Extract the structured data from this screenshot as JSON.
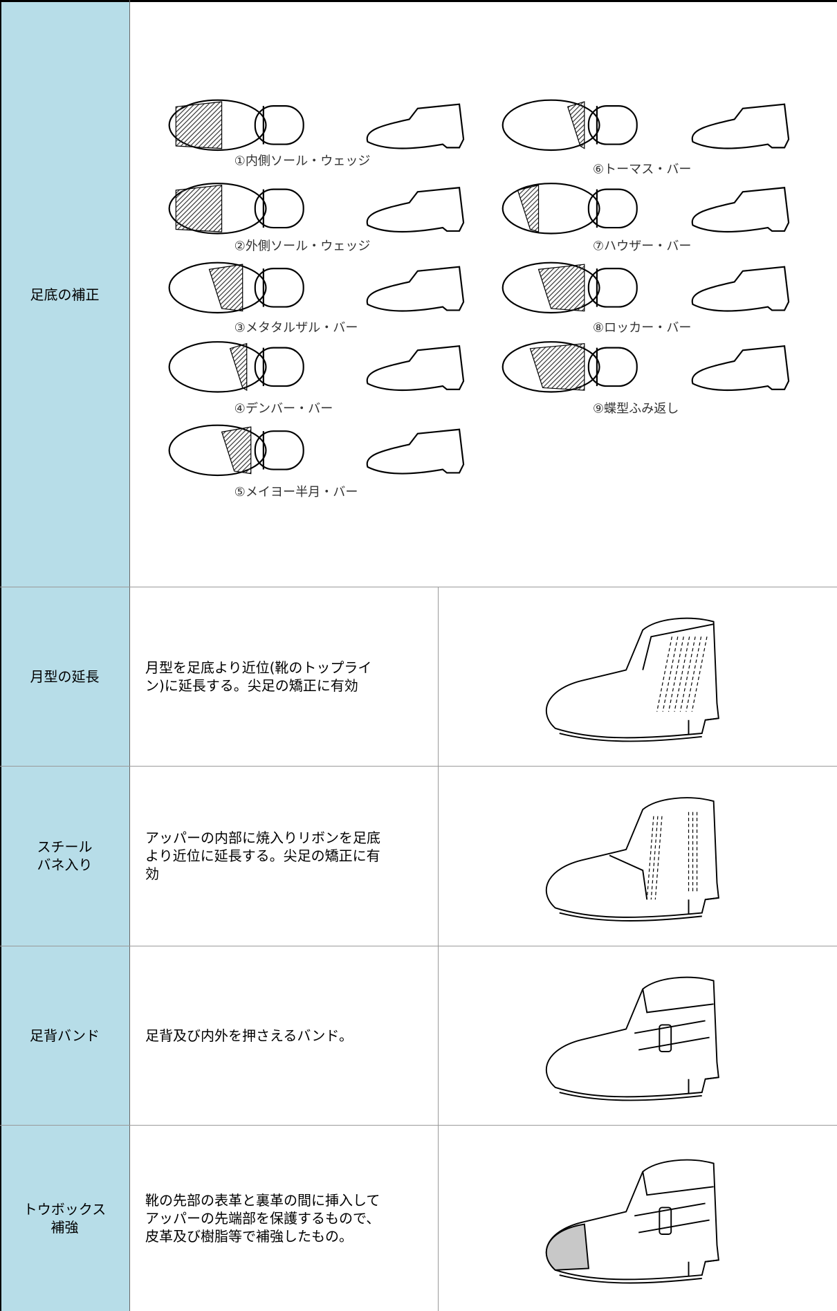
{
  "rows": [
    {
      "label": [
        "足底の補正"
      ],
      "items": [
        "①内側ソール・ウェッジ",
        "②外側ソール・ウェッジ",
        "③メタタルザル・バー",
        "④デンバー・バー",
        "⑤メイヨー半月・バー",
        "⑥トーマス・バー",
        "⑦ハウザー・バー",
        "⑧ロッカー・バー",
        "⑨蝶型ふみ返し"
      ]
    },
    {
      "label": [
        "月型の延長"
      ],
      "description": "月型を足底より近位(靴のトップライン)に延長する。尖足の矯正に有効"
    },
    {
      "label": [
        "スチール",
        "バネ入り"
      ],
      "description": "アッパーの内部に焼入りリボンを足底より近位に延長する。尖足の矯正に有効"
    },
    {
      "label": [
        "足背バンド"
      ],
      "description": "足背及び内外を押さえるバンド。"
    },
    {
      "label": [
        "トウボックス",
        "補強"
      ],
      "description": "靴の先部の表革と裏革の間に挿入してアッパーの先端部を保護するもので、皮革及び樹脂等で補強したもの。"
    }
  ]
}
